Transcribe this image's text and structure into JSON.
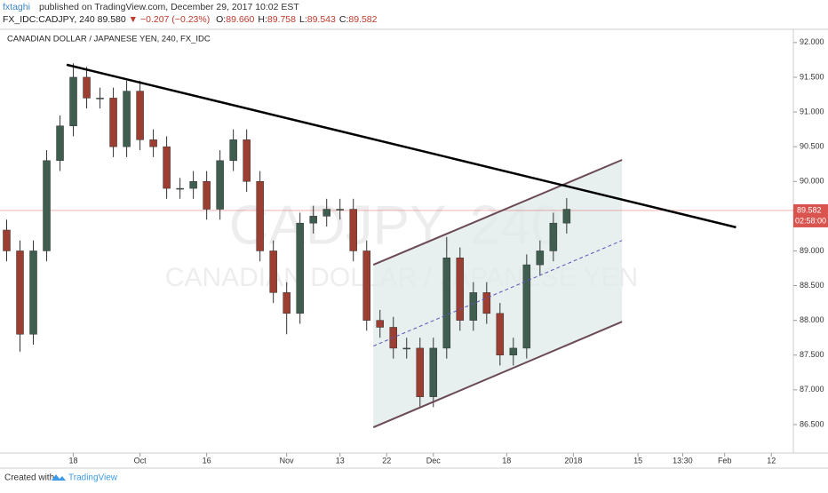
{
  "header": {
    "author": "fxtaghi",
    "published": "published on TradingView.com, December 29, 2017 10:02 EST",
    "symbol": "FX_IDC:CADJPY, 240",
    "last": "89.580",
    "arrow": "▼",
    "change": "−0.207 (−0.23%)",
    "ohlc": [
      {
        "label": "O:",
        "value": "89.660"
      },
      {
        "label": "H:",
        "value": "89.758"
      },
      {
        "label": "L:",
        "value": "89.543"
      },
      {
        "label": "C:",
        "value": "89.582"
      }
    ]
  },
  "chart_data": {
    "type": "candlestick",
    "title": "CANADIAN DOLLAR / JAPANESE YEN, 240, FX_IDC",
    "watermark": "CADJPY, 240",
    "watermark_subtitle": "CANADIAN DOLLAR / JAPANESE YEN",
    "x": [
      1,
      3,
      5,
      7,
      9,
      11,
      13,
      15,
      17,
      19,
      21,
      23,
      25,
      27,
      29,
      31,
      33,
      35,
      37,
      39,
      41,
      43,
      45,
      47,
      49,
      51,
      53,
      55,
      57,
      59,
      61,
      63,
      65,
      67,
      69,
      71,
      73,
      75,
      77,
      79,
      81,
      83,
      85
    ],
    "open": [
      89.3,
      89.0,
      87.8,
      89.0,
      90.3,
      90.8,
      91.5,
      91.2,
      91.2,
      90.5,
      91.3,
      90.6,
      90.5,
      89.9,
      89.9,
      90.0,
      89.6,
      90.3,
      90.6,
      90.0,
      89.0,
      88.4,
      88.1,
      89.4,
      89.5,
      89.6,
      89.6,
      89.0,
      88.0,
      87.9,
      87.6,
      87.6,
      86.9,
      87.6,
      88.9,
      88.0,
      88.4,
      88.1,
      87.5,
      87.6,
      88.8,
      89.0,
      89.4
    ],
    "high": [
      89.45,
      89.15,
      89.15,
      90.45,
      90.95,
      91.7,
      91.65,
      91.35,
      91.35,
      91.45,
      91.45,
      90.75,
      90.65,
      90.05,
      90.15,
      90.15,
      90.45,
      90.75,
      90.75,
      90.15,
      89.15,
      88.55,
      89.55,
      89.65,
      89.75,
      89.75,
      89.75,
      89.15,
      88.15,
      88.05,
      87.75,
      87.75,
      87.75,
      89.2,
      89.05,
      88.55,
      88.55,
      88.25,
      87.75,
      88.95,
      89.15,
      89.55,
      89.76
    ],
    "low": [
      88.85,
      87.55,
      87.65,
      88.85,
      90.15,
      90.65,
      91.05,
      91.05,
      90.35,
      90.35,
      90.45,
      90.35,
      89.75,
      89.75,
      89.75,
      89.45,
      89.45,
      90.15,
      89.85,
      88.85,
      88.25,
      87.8,
      87.95,
      89.25,
      89.35,
      89.45,
      88.85,
      87.85,
      87.75,
      87.45,
      87.45,
      86.75,
      86.75,
      87.45,
      87.85,
      87.85,
      87.95,
      87.35,
      87.35,
      87.45,
      88.65,
      88.85,
      89.25
    ],
    "close": [
      89.0,
      87.8,
      89.0,
      90.3,
      90.8,
      91.5,
      91.2,
      91.2,
      90.5,
      91.3,
      90.6,
      90.5,
      89.9,
      89.9,
      90.0,
      89.6,
      90.3,
      90.6,
      90.0,
      89.0,
      88.4,
      88.1,
      89.4,
      89.5,
      89.6,
      89.6,
      89.0,
      88.0,
      87.9,
      87.6,
      87.6,
      86.9,
      87.6,
      88.9,
      88.0,
      88.4,
      88.1,
      87.5,
      87.6,
      88.8,
      89.0,
      89.4,
      89.6
    ],
    "up_color": "#3f5e50",
    "down_color": "#9c3f32",
    "xlim": [
      0,
      119
    ],
    "ylim": [
      86.09,
      92.19
    ],
    "xticks": [
      {
        "value": 11,
        "label": "18"
      },
      {
        "value": 21,
        "label": "Oct"
      },
      {
        "value": 31,
        "label": "16"
      },
      {
        "value": 43,
        "label": "Nov"
      },
      {
        "value": 51,
        "label": "13"
      },
      {
        "value": 58,
        "label": "22"
      },
      {
        "value": 65,
        "label": "Dec"
      },
      {
        "value": 76,
        "label": "18"
      },
      {
        "value": 86,
        "label": "2018"
      },
      {
        "value": 95.7,
        "label": "15"
      },
      {
        "value": 102.4,
        "label": "13:30"
      },
      {
        "value": 108.7,
        "label": "Feb"
      },
      {
        "value": 115.7,
        "label": "12"
      }
    ],
    "yticks": [
      {
        "value": 86.5,
        "label": "86.500"
      },
      {
        "value": 87,
        "label": "87.000"
      },
      {
        "value": 87.5,
        "label": "87.500"
      },
      {
        "value": 88,
        "label": "88.000"
      },
      {
        "value": 88.5,
        "label": "88.500"
      },
      {
        "value": 89,
        "label": "89.000"
      },
      {
        "value": 89.5,
        "label": "89.500"
      },
      {
        "value": 90,
        "label": "90.000"
      },
      {
        "value": 90.5,
        "label": "90.500"
      },
      {
        "value": 91,
        "label": "91.000"
      },
      {
        "value": 91.5,
        "label": "91.500"
      },
      {
        "value": 92,
        "label": "92.000"
      }
    ],
    "last_price": {
      "value": 89.582,
      "label": "89.582"
    },
    "countdown": "02:58:00",
    "trendline": {
      "color": "#000000",
      "points": [
        [
          10,
          91.68
        ],
        [
          110.4,
          89.34
        ]
      ]
    },
    "channel": {
      "color": "#6b4a55",
      "fill": "#dfe9ea",
      "mid_color": "#5a55b5",
      "upper": [
        [
          56,
          88.8
        ],
        [
          93.3,
          90.31
        ]
      ],
      "lower": [
        [
          56,
          86.46
        ],
        [
          93.3,
          87.98
        ]
      ],
      "middle": [
        [
          56,
          87.63
        ],
        [
          93.3,
          89.15
        ]
      ]
    }
  },
  "footer": {
    "created": "Created with",
    "brand": "TradingView"
  }
}
